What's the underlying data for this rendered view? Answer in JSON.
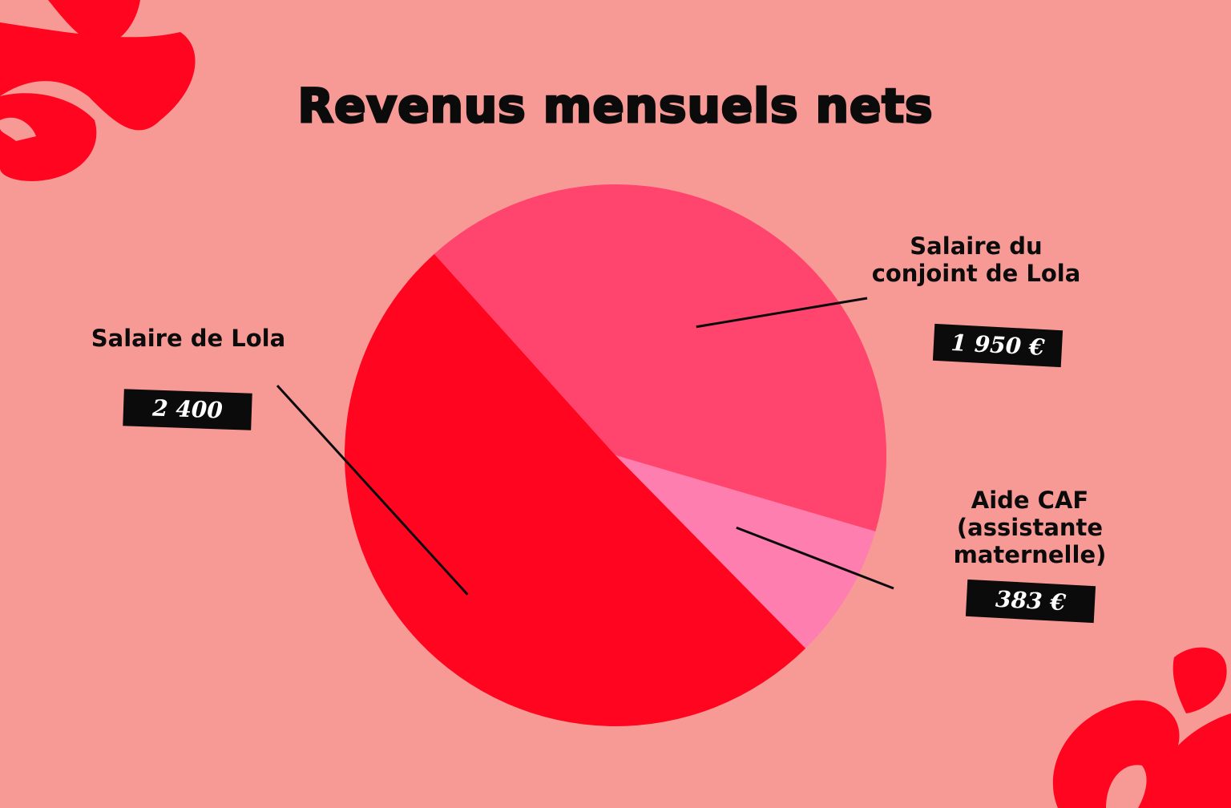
{
  "title": "Revenus mensuels nets",
  "colors": {
    "background": "#F79A96",
    "accent": "#FF0520",
    "slice_lola": "#FF0520",
    "slice_conjoint": "#FF456D",
    "slice_caf": "#FF7EB0",
    "tag_bg": "#0b0b0b"
  },
  "chart_data": {
    "type": "pie",
    "title": "Revenus mensuels nets",
    "slices": [
      {
        "label": "Salaire du conjoint de Lola",
        "value": 1950,
        "value_label": "1 950 €",
        "color": "#FF456D"
      },
      {
        "label": "Aide CAF (assistante maternelle)",
        "value": 383,
        "value_label": "383 €",
        "color": "#FF7EB0"
      },
      {
        "label": "Salaire de Lola",
        "value": 2400,
        "value_label": "2 400",
        "color": "#FF0520"
      }
    ],
    "legend": "callouts"
  },
  "labels": {
    "lola": "Salaire de Lola",
    "conjoint": "Salaire du\nconjoint de Lola",
    "caf": "Aide CAF\n(assistante\nmaternelle)"
  }
}
